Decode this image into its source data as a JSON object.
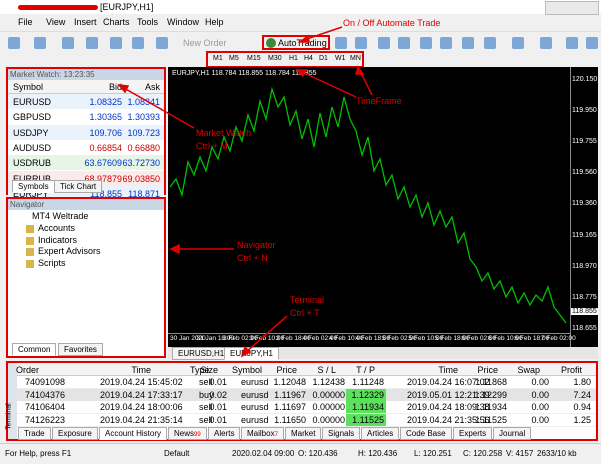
{
  "window": {
    "title": "[EURJPY,H1]"
  },
  "menu": [
    "File",
    "View",
    "Insert",
    "Charts",
    "Tools",
    "Window",
    "Help"
  ],
  "toolbar": {
    "new_order": "New Order",
    "autotrading": "AutoTrading",
    "timeframes": [
      "M1",
      "M5",
      "M15",
      "M30",
      "H1",
      "H4",
      "D1",
      "W1",
      "MN"
    ]
  },
  "annotations": {
    "autotrading": [
      "On / Off Automate Trade"
    ],
    "timeframe": [
      "TimeFrame"
    ],
    "market_watch": [
      "Market Watch",
      "Ctrl + M"
    ],
    "navigator": [
      "Navigator",
      "Ctrl + N"
    ],
    "terminal": [
      "Terminal",
      "Ctrl + T"
    ]
  },
  "market_watch": {
    "title": "Market Watch: 13:23:35",
    "columns": [
      "Symbol",
      "Bid",
      "Ask"
    ],
    "rows": [
      [
        "EURUSD",
        "1.08325",
        "1.08341"
      ],
      [
        "GBPUSD",
        "1.30365",
        "1.30393"
      ],
      [
        "USDJPY",
        "109.706",
        "109.723"
      ],
      [
        "AUDUSD",
        "0.66854",
        "0.66880"
      ],
      [
        "USDRUB",
        "63.67609",
        "63.72730"
      ],
      [
        "EURRUB",
        "68.97879",
        "69.03850"
      ],
      [
        "EURJPY",
        "118.855",
        "118.871"
      ]
    ],
    "tabs": [
      "Symbols",
      "Tick Chart"
    ]
  },
  "navigator": {
    "title": "Navigator",
    "root": "MT4 Weltrade",
    "items": [
      "Accounts",
      "Indicators",
      "Expert Advisors",
      "Scripts"
    ],
    "tabs": [
      "Common",
      "Favorites"
    ]
  },
  "chart": {
    "info": "EURJPY,H1  118.784 118.855 118.784 118.855",
    "price_labels": [
      "120.150",
      "119.950",
      "119.755",
      "119.560",
      "119.360",
      "119.165",
      "118.970",
      "118.775",
      "118.655"
    ],
    "current_price": "118.855",
    "time_labels": [
      "30 Jan 2020",
      "31 Jan 18:00",
      "3 Feb 02:00",
      "3 Feb 10:00",
      "3 Feb 18:00",
      "4 Feb 02:00",
      "4 Feb 10:00",
      "4 Feb 18:00",
      "5 Feb 02:00",
      "5 Feb 10:00",
      "5 Feb 18:00",
      "6 Feb 02:00",
      "6 Feb 10:00",
      "6 Feb 18:00",
      "7 Feb 02:00"
    ],
    "tabs": [
      "EURUSD,H1",
      "EURJPY,H1"
    ]
  },
  "terminal": {
    "label": "Terminal",
    "columns": [
      "Order",
      "Time",
      "Type",
      "Size",
      "Symbol",
      "Price",
      "S / L",
      "T / P",
      "Time",
      "Price",
      "Swap",
      "Profit"
    ],
    "rows": [
      [
        "74091098",
        "2019.04.24 15:45:02",
        "sell",
        "0.01",
        "eurusd",
        "1.12048",
        "1.12438",
        "1.11248",
        "2019.04.24 16:07:02",
        "1.11868",
        "0.00",
        "1.80"
      ],
      [
        "74104376",
        "2019.04.24 17:33:17",
        "buy",
        "0.02",
        "eurusd",
        "1.11967",
        "0.00000",
        "1.12329",
        "2019.05.01 12:21:39",
        "1.12299",
        "0.00",
        "7.24"
      ],
      [
        "74106404",
        "2019.04.24 18:00:06",
        "sell",
        "0.01",
        "eurusd",
        "1.11697",
        "0.00000",
        "1.11934",
        "2019.04.24 18:09:38",
        "1.11934",
        "0.00",
        "0.94"
      ],
      [
        "74126223",
        "2019.04.24 21:35:14",
        "sell",
        "0.01",
        "eurusd",
        "1.11650",
        "0.00000",
        "1.11525",
        "2019.04.24 21:35:56",
        "1.11525",
        "0.00",
        "1.25"
      ]
    ],
    "tabs": [
      {
        "label": "Trade"
      },
      {
        "label": "Exposure"
      },
      {
        "label": "Account History"
      },
      {
        "label": "News",
        "badge": "99"
      },
      {
        "label": "Alerts"
      },
      {
        "label": "Mailbox",
        "badge": "7"
      },
      {
        "label": "Market"
      },
      {
        "label": "Signals"
      },
      {
        "label": "Articles"
      },
      {
        "label": "Code Base"
      },
      {
        "label": "Experts"
      },
      {
        "label": "Journal"
      }
    ]
  },
  "status": [
    "For Help, press F1",
    "Default",
    "2020.02.04 09:00",
    "O: 120.436",
    "H: 120.436",
    "L: 120.251",
    "C: 120.258",
    "V: 4157",
    "2633/10 kb"
  ]
}
